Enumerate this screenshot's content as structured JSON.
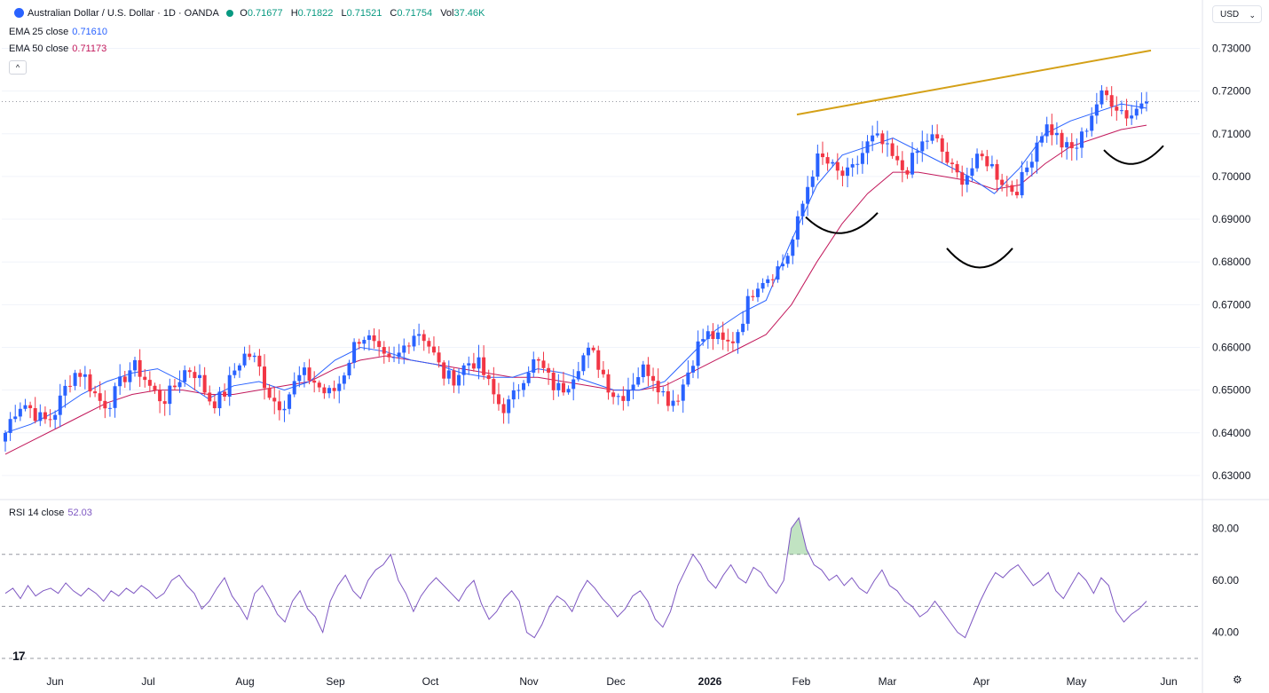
{
  "header": {
    "symbol_title": "Australian Dollar / U.S. Dollar · 1D · OANDA",
    "ohlc": {
      "o_label": "O",
      "o": "0.71677",
      "h_label": "H",
      "h": "0.71822",
      "l_label": "L",
      "l": "0.71521",
      "c_label": "C",
      "c": "0.71754",
      "vol_label": "Vol",
      "vol": "37.46K"
    },
    "ema25_label": "EMA 25 close",
    "ema25_value": "0.71610",
    "ema50_label": "EMA 50 close",
    "ema50_value": "0.71173",
    "rsi_label": "RSI 14 close",
    "rsi_value": "52.03",
    "currency": "USD",
    "collapse_glyph": "^",
    "logo_text": "17",
    "settings_glyph": "⚙"
  },
  "colors": {
    "up": "#2962ff",
    "down": "#f23645",
    "ema25": "#2962ff",
    "ema50": "#c2185b",
    "trendline": "#d4a017",
    "pattern": "#000000",
    "rsi": "#7e57c2",
    "rsi_fill": "#4caf50",
    "grid": "#f0f3fa"
  },
  "chart_data": [
    {
      "type": "candlestick",
      "title": "Australian Dollar / U.S. Dollar · 1D · OANDA",
      "ylim": [
        0.625,
        0.7355
      ],
      "y_ticks": [
        "0.73000",
        "0.72000",
        "0.71000",
        "0.70000",
        "0.69000",
        "0.68000",
        "0.67000",
        "0.66000",
        "0.65000",
        "0.64000",
        "0.63000"
      ],
      "x_ticks": [
        "Jun",
        "Jul",
        "Aug",
        "Sep",
        "Oct",
        "Nov",
        "Dec",
        "2026",
        "Feb",
        "Mar",
        "Apr",
        "May",
        "Jun"
      ],
      "series": [
        {
          "name": "EMA 25 close",
          "values": [
            0.64,
            0.642,
            0.645,
            0.649,
            0.652,
            0.654,
            0.655,
            0.652,
            0.648,
            0.651,
            0.652,
            0.65,
            0.652,
            0.657,
            0.66,
            0.659,
            0.657,
            0.656,
            0.654,
            0.653,
            0.653,
            0.655,
            0.654,
            0.652,
            0.65,
            0.65,
            0.652,
            0.658,
            0.664,
            0.668,
            0.671,
            0.685,
            0.698,
            0.705,
            0.707,
            0.709,
            0.706,
            0.703,
            0.7,
            0.696,
            0.702,
            0.71,
            0.713,
            0.715,
            0.717,
            0.716
          ]
        },
        {
          "name": "EMA 50 close",
          "values": [
            0.635,
            0.638,
            0.641,
            0.644,
            0.647,
            0.649,
            0.65,
            0.65,
            0.649,
            0.649,
            0.65,
            0.651,
            0.652,
            0.655,
            0.657,
            0.658,
            0.657,
            0.656,
            0.655,
            0.654,
            0.653,
            0.653,
            0.652,
            0.651,
            0.65,
            0.65,
            0.651,
            0.654,
            0.657,
            0.66,
            0.663,
            0.67,
            0.68,
            0.689,
            0.696,
            0.701,
            0.701,
            0.7,
            0.699,
            0.697,
            0.698,
            0.703,
            0.707,
            0.709,
            0.711,
            0.712
          ]
        }
      ],
      "current_price": 0.71754,
      "annotations": [
        "rising trendline across highs",
        "inverse head and shoulders curves"
      ]
    },
    {
      "type": "line",
      "title": "RSI 14 close",
      "ylim": [
        30,
        88
      ],
      "y_ticks": [
        "80.00",
        "60.00",
        "40.00"
      ],
      "levels": [
        70,
        50,
        30
      ],
      "values": [
        55,
        57,
        53,
        58,
        54,
        56,
        57,
        55,
        59,
        56,
        54,
        57,
        55,
        52,
        56,
        54,
        57,
        55,
        58,
        56,
        53,
        55,
        60,
        62,
        58,
        55,
        49,
        52,
        57,
        61,
        54,
        50,
        45,
        55,
        58,
        53,
        47,
        44,
        52,
        56,
        49,
        46,
        40,
        52,
        58,
        62,
        56,
        53,
        60,
        64,
        66,
        70,
        60,
        55,
        48,
        54,
        58,
        61,
        58,
        55,
        52,
        57,
        60,
        51,
        45,
        48,
        53,
        56,
        52,
        40,
        38,
        43,
        50,
        54,
        52,
        48,
        55,
        60,
        57,
        53,
        50,
        46,
        49,
        54,
        56,
        52,
        45,
        42,
        48,
        58,
        64,
        70,
        66,
        60,
        57,
        62,
        66,
        61,
        59,
        65,
        63,
        58,
        55,
        60,
        80,
        84,
        72,
        66,
        64,
        60,
        62,
        58,
        61,
        57,
        55,
        60,
        64,
        58,
        56,
        52,
        50,
        46,
        48,
        52,
        48,
        44,
        40,
        38,
        45,
        52,
        58,
        63,
        61,
        64,
        66,
        62,
        58,
        60,
        63,
        56,
        53,
        58,
        63,
        60,
        55,
        61,
        58,
        48,
        44,
        47,
        49,
        52
      ]
    }
  ]
}
